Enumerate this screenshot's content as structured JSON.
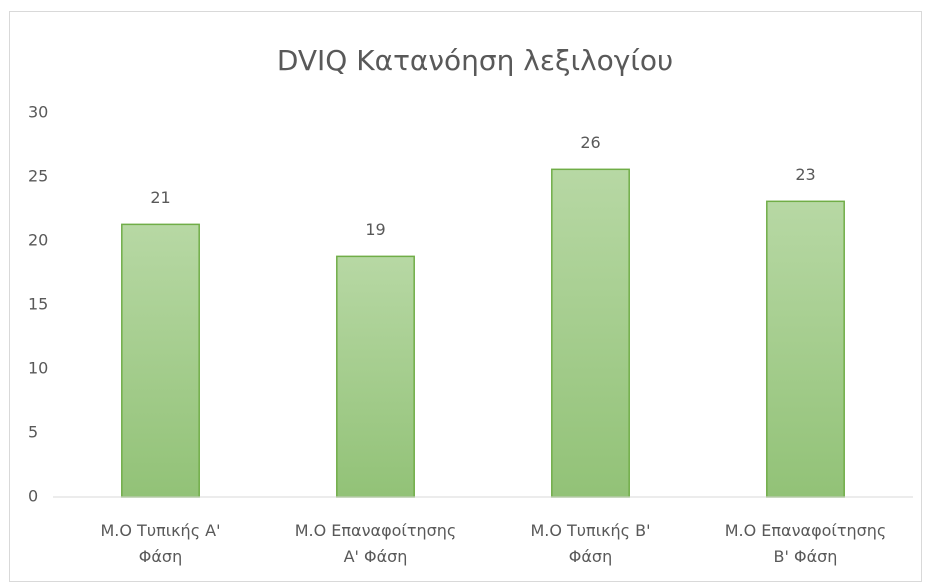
{
  "chart_data": {
    "type": "bar",
    "title": "DVIQ Κατανόηση λεξιλογίου",
    "categories": [
      "Μ.Ο Τυπικής Α'\nΦάση",
      "Μ.Ο Επαναφοίτησης\nΑ' Φάση",
      "Μ.Ο Τυπικής Β'\nΦάση",
      "Μ.Ο Επαναφοίτησης\nΒ' Φάση"
    ],
    "values": [
      21.3,
      18.8,
      25.6,
      23.1
    ],
    "value_labels": [
      "21",
      "19",
      "26",
      "23"
    ],
    "color": "#70ad47",
    "ylim": [
      0,
      30
    ],
    "yticks": [
      0,
      5,
      10,
      15,
      20,
      25,
      30
    ],
    "grid": false
  }
}
